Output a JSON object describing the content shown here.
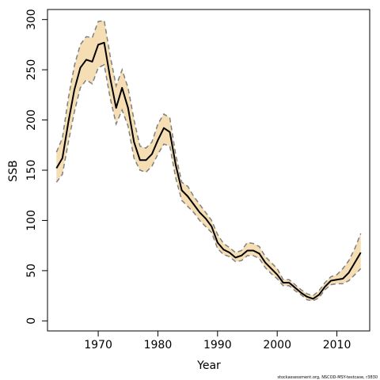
{
  "chart_data": {
    "type": "line",
    "title": "",
    "xlabel": "Year",
    "ylabel": "SSB",
    "xlim": [
      1961.5,
      2015.5
    ],
    "ylim": [
      -10,
      310
    ],
    "x_ticks": [
      1970,
      1980,
      1990,
      2000,
      2010
    ],
    "y_ticks": [
      0,
      50,
      100,
      150,
      200,
      250,
      300
    ],
    "grid": false,
    "legend": "none",
    "colors": {
      "band_fill": "#f5deb3",
      "line": "#000000",
      "bounds": "#808080"
    },
    "years": [
      1963,
      1964,
      1965,
      1966,
      1967,
      1968,
      1969,
      1970,
      1971,
      1972,
      1973,
      1974,
      1975,
      1976,
      1977,
      1978,
      1979,
      1980,
      1981,
      1982,
      1983,
      1984,
      1985,
      1986,
      1987,
      1988,
      1989,
      1990,
      1991,
      1992,
      1993,
      1994,
      1995,
      1996,
      1997,
      1998,
      1999,
      2000,
      2001,
      2002,
      2003,
      2004,
      2005,
      2006,
      2007,
      2008,
      2009,
      2010,
      2011,
      2012,
      2013,
      2014
    ],
    "series": [
      {
        "name": "",
        "values": [
          152,
          162,
          198,
          230,
          252,
          260,
          258,
          275,
          277,
          242,
          212,
          232,
          212,
          178,
          160,
          160,
          166,
          180,
          192,
          188,
          155,
          130,
          124,
          116,
          108,
          102,
          94,
          78,
          71,
          68,
          63,
          65,
          70,
          70,
          67,
          58,
          52,
          46,
          38,
          38,
          33,
          28,
          24,
          22,
          26,
          34,
          40,
          41,
          42,
          48,
          58,
          68
        ]
      }
    ],
    "upper_bound": [
      168,
      182,
      222,
      254,
      275,
      283,
      282,
      298,
      299,
      264,
      234,
      250,
      232,
      200,
      174,
      172,
      178,
      196,
      206,
      202,
      165,
      138,
      134,
      124,
      116,
      108,
      100,
      86,
      77,
      73,
      68,
      70,
      78,
      77,
      74,
      64,
      58,
      52,
      41,
      41,
      36,
      31,
      27,
      25,
      30,
      38,
      44,
      46,
      52,
      60,
      72,
      87
    ],
    "lower_bound": [
      138,
      146,
      178,
      208,
      232,
      240,
      236,
      252,
      255,
      222,
      196,
      210,
      194,
      162,
      150,
      148,
      154,
      166,
      176,
      174,
      142,
      120,
      114,
      108,
      100,
      94,
      88,
      72,
      66,
      64,
      59,
      60,
      65,
      65,
      62,
      53,
      47,
      42,
      35,
      35,
      30,
      26,
      21,
      20,
      23,
      31,
      36,
      37,
      37,
      40,
      46,
      52
    ],
    "footer": "stockassessment.org, NSCOD-MSY-testcase, r3830"
  }
}
